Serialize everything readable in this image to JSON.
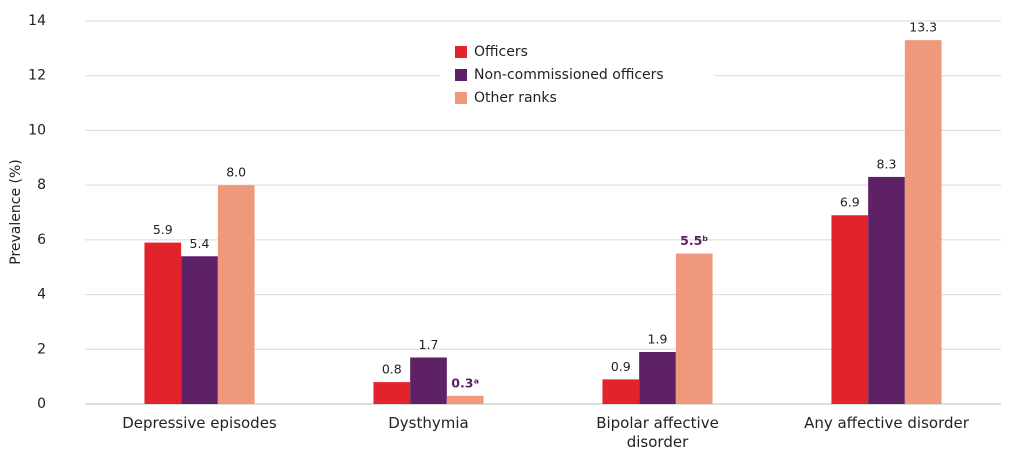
{
  "chart_data": {
    "type": "bar",
    "y_label": "Prevalence (%)",
    "categories": [
      "Depressive episodes",
      "Dysthymia",
      "Bipolar affective disorder",
      "Any affective disorder"
    ],
    "series": [
      {
        "name": "Officers",
        "color": "#e2232b",
        "values": [
          5.9,
          0.8,
          0.9,
          6.9
        ],
        "value_labels": [
          "5.9",
          "0.8",
          "0.9",
          "6.9"
        ]
      },
      {
        "name": "Non-commissioned officers",
        "color": "#5e2166",
        "values": [
          5.4,
          1.7,
          1.9,
          8.3
        ],
        "value_labels": [
          "5.4",
          "1.7",
          "1.9",
          "8.3"
        ]
      },
      {
        "name": "Other ranks",
        "color": "#f0987c",
        "values": [
          8.0,
          0.3,
          5.5,
          13.3
        ],
        "value_labels": [
          "8.0",
          "0.3ᵃ",
          "5.5ᵇ",
          "13.3"
        ]
      }
    ],
    "ylim": [
      0,
      14
    ],
    "yticks": [
      0,
      2,
      4,
      6,
      8,
      10,
      12,
      14
    ],
    "grid": true,
    "legend": "top"
  }
}
